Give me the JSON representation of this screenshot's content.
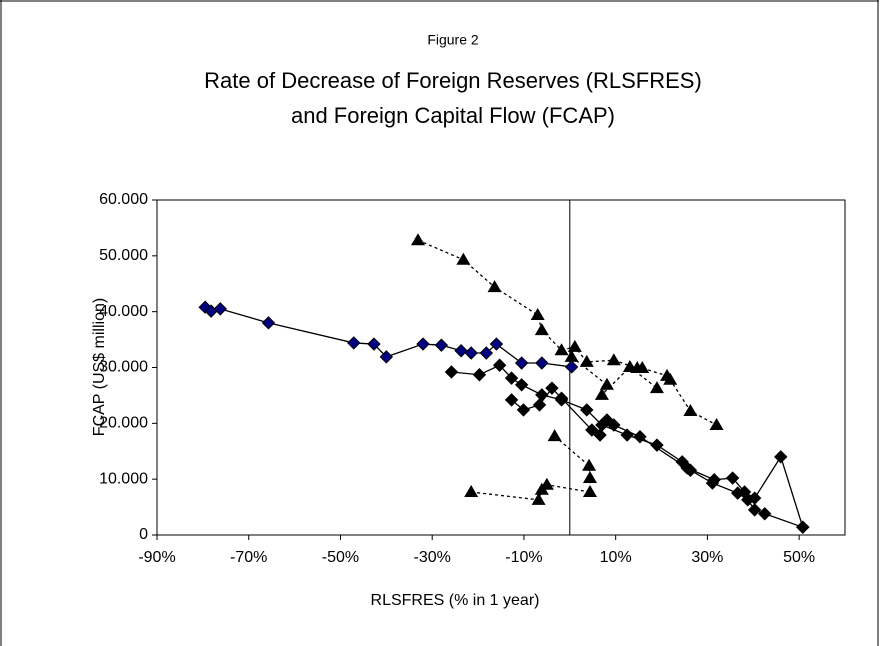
{
  "chart_data": {
    "type": "scatter",
    "supertitle": "Figure 2",
    "title": [
      "Rate of Decrease of Foreign Reserves (RLSFRES)",
      "and Foreign Capital Flow (FCAP)"
    ],
    "xlabel": "RLSFRES (% in 1 year)",
    "ylabel": "FCAP (US$ million)",
    "xlim": [
      -90,
      60
    ],
    "ylim": [
      0,
      60
    ],
    "xticks": [
      {
        "value": -90,
        "label": "-90%"
      },
      {
        "value": -70,
        "label": "-70%"
      },
      {
        "value": -50,
        "label": "-50%"
      },
      {
        "value": -30,
        "label": "-30%"
      },
      {
        "value": -10,
        "label": "-10%"
      },
      {
        "value": 10,
        "label": "10%"
      },
      {
        "value": 30,
        "label": "30%"
      },
      {
        "value": 50,
        "label": "50%"
      }
    ],
    "yticks": [
      0,
      {
        "value": 10,
        "label": "10.000"
      },
      {
        "value": 20,
        "label": "20.000"
      },
      {
        "value": 30,
        "label": "30.000"
      },
      {
        "value": 40,
        "label": "40.000"
      },
      {
        "value": 50,
        "label": "50.000"
      },
      {
        "value": 60,
        "label": "60.000"
      }
    ],
    "grid": false,
    "series": [
      {
        "marker": "diamond",
        "color": "#000080",
        "line": "solid",
        "x": [
          -79.5,
          -78.2,
          -76.2,
          -65.7,
          -47.1,
          -42.7,
          -40.0,
          -32.0,
          -28.0,
          -23.7,
          -21.5,
          -18.2,
          -16.0,
          -10.5,
          -6.1,
          0.4
        ],
        "y": [
          40.8,
          40.1,
          40.5,
          38.0,
          34.4,
          34.2,
          31.9,
          34.2,
          34.0,
          33.0,
          32.6,
          32.6,
          34.2,
          30.8,
          30.8,
          30.1
        ]
      },
      {
        "marker": "diamond",
        "color": "#000000",
        "line": "solid",
        "x": [
          -25.8,
          -19.7,
          -15.3,
          -12.7,
          -10.5,
          -6.1,
          -1.8,
          3.7,
          7.0,
          12.5,
          19.0,
          24.5,
          26.3,
          31.1,
          36.6,
          38.8,
          40.3,
          42.5,
          50.8
        ],
        "y": [
          29.2,
          28.7,
          30.4,
          28.1,
          26.9,
          25.1,
          24.2,
          22.4,
          19.7,
          17.9,
          16.1,
          13.1,
          11.6,
          9.3,
          7.5,
          6.3,
          4.5,
          3.8,
          1.4
        ]
      },
      {
        "marker": "diamond",
        "color": "#000000",
        "line": "solid",
        "x": [
          -12.7,
          -10.1,
          -6.6,
          -3.9,
          -1.8,
          4.8,
          6.6,
          8.1,
          9.6,
          15.3,
          25.6,
          31.5,
          35.5,
          38.1,
          40.3,
          46.0,
          50.8
        ],
        "y": [
          24.2,
          22.4,
          23.3,
          26.3,
          24.5,
          18.8,
          17.9,
          20.6,
          19.7,
          17.6,
          12.0,
          9.9,
          10.2,
          7.7,
          6.6,
          14.0,
          1.4
        ]
      },
      {
        "marker": "triangle",
        "color": "#000000",
        "line": "dotted",
        "x": [
          -33.1,
          -23.2,
          -16.4,
          -7.0,
          -6.1,
          -1.8,
          1.1,
          3.7,
          9.6,
          14.7,
          15.8,
          21.2,
          21.9,
          26.3,
          32.0
        ],
        "y": [
          52.8,
          49.3,
          44.4,
          39.4,
          36.7,
          33.1,
          33.7,
          31.0,
          31.3,
          29.9,
          29.9,
          28.5,
          27.8,
          22.2,
          19.7
        ]
      },
      {
        "marker": "triangle",
        "color": "#000000",
        "line": "dotted",
        "x": [
          -21.5,
          -6.8,
          -6.1,
          -5.0,
          4.4,
          4.4,
          4.2,
          -3.3
        ],
        "y": [
          7.7,
          6.3,
          8.1,
          9.0,
          7.7,
          10.2,
          12.4,
          17.7
        ]
      },
      {
        "marker": "triangle",
        "color": "#000000",
        "line": "dotted",
        "x": [
          0.4,
          8.1,
          7.0,
          13.1,
          19.0
        ],
        "y": [
          31.9,
          26.9,
          25.1,
          30.1,
          26.3
        ]
      }
    ]
  }
}
